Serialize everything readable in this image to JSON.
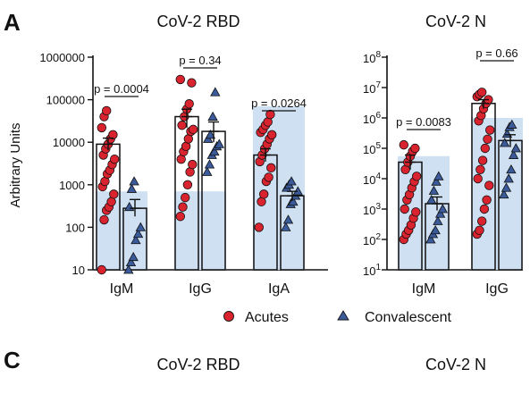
{
  "figure": {
    "panel_a_letter": "A",
    "panel_c_letter": "C",
    "panel_c_titles": [
      "CoV-2 RBD",
      "CoV-2 N"
    ]
  },
  "legend": {
    "items": [
      {
        "label": "Acutes",
        "marker": "circle",
        "color": "#d9232e"
      },
      {
        "label": "Convalescent",
        "marker": "triangle",
        "color": "#3a5a9a"
      }
    ]
  },
  "colors": {
    "acute_marker": "#d9232e",
    "convalescent_marker": "#3a5a9a",
    "shaded_band": "#cfe0f3",
    "bar_outline": "#111111"
  },
  "chart_data": [
    {
      "type": "bar",
      "title": "CoV-2 RBD",
      "ylabel": "Arbitrary Units",
      "yscale": "log",
      "ylim": [
        10,
        1000000
      ],
      "yticks": [
        {
          "value": 10,
          "label": "10"
        },
        {
          "value": 100,
          "label": "100"
        },
        {
          "value": 1000,
          "label": "1000"
        },
        {
          "value": 10000,
          "label": "10000"
        },
        {
          "value": 100000,
          "label": "100000"
        },
        {
          "value": 1000000,
          "label": "1000000"
        }
      ],
      "categories": [
        "IgM",
        "IgG",
        "IgA"
      ],
      "series": [
        {
          "name": "Acutes",
          "means": [
            9000,
            40000,
            5000
          ],
          "errors": [
            [
              6500,
              12500
            ],
            [
              22000,
              60000
            ],
            [
              3500,
              7000
            ]
          ]
        },
        {
          "name": "Convalescent",
          "means": [
            280,
            18000,
            550
          ],
          "errors": [
            [
              180,
              450
            ],
            [
              10000,
              30000
            ],
            [
              420,
              700
            ]
          ]
        }
      ],
      "shaded_regions": [
        {
          "category": "IgM",
          "top": 700
        },
        {
          "category": "IgG",
          "top": 700
        },
        {
          "category": "IgA",
          "top": 70000
        }
      ],
      "points": {
        "IgM": {
          "Acutes": [
            10,
            150,
            250,
            300,
            400,
            600,
            900,
            1200,
            1800,
            2200,
            3000,
            4000,
            5000,
            7000,
            9000,
            12000,
            15000,
            22000,
            40000,
            55000
          ],
          "Convalescent": [
            10,
            15,
            20,
            50,
            70,
            100,
            300,
            800,
            1200
          ]
        },
        "IgG": {
          "Acutes": [
            180,
            300,
            500,
            1000,
            2000,
            3000,
            4000,
            6000,
            8000,
            12000,
            18000,
            20000,
            25000,
            40000,
            60000,
            80000,
            250000,
            300000
          ],
          "Convalescent": [
            2000,
            3000,
            5000,
            6000,
            8000,
            9000,
            12000,
            15000,
            40000,
            150000
          ]
        },
        "IgA": {
          "Acutes": [
            100,
            400,
            600,
            1200,
            1500,
            2500,
            3500,
            5000,
            7000,
            9000,
            12000,
            15000,
            17000,
            20000,
            25000,
            30000,
            45000
          ],
          "Convalescent": [
            100,
            150,
            350,
            400,
            550,
            700,
            850,
            1000,
            1200
          ]
        }
      },
      "comparisons": [
        {
          "category": "IgM",
          "label": "p = 0.0004"
        },
        {
          "category": "IgG",
          "label": "p = 0.34"
        },
        {
          "category": "IgA",
          "label": "p = 0.0264"
        }
      ]
    },
    {
      "type": "bar",
      "title": "CoV-2 N",
      "yscale": "log",
      "ylim": [
        10,
        100000000
      ],
      "yticks": [
        {
          "value": 10,
          "base": "10",
          "exp": "1"
        },
        {
          "value": 100,
          "base": "10",
          "exp": "2"
        },
        {
          "value": 1000,
          "base": "10",
          "exp": "3"
        },
        {
          "value": 10000,
          "base": "10",
          "exp": "4"
        },
        {
          "value": 100000,
          "base": "10",
          "exp": "5"
        },
        {
          "value": 1000000,
          "base": "10",
          "exp": "6"
        },
        {
          "value": 10000000,
          "base": "10",
          "exp": "7"
        },
        {
          "value": 100000000,
          "base": "10",
          "exp": "8"
        }
      ],
      "categories": [
        "IgM",
        "IgG"
      ],
      "series": [
        {
          "name": "Acutes",
          "means": [
            35000,
            3000000
          ],
          "errors": [
            [
              20000,
              60000
            ],
            [
              2000000,
              4000000
            ]
          ]
        },
        {
          "name": "Convalescent",
          "means": [
            1500,
            180000
          ],
          "errors": [
            [
              900,
              2500
            ],
            [
              110000,
              280000
            ]
          ]
        }
      ],
      "shaded_regions": [
        {
          "category": "IgM",
          "top": 55000
        },
        {
          "category": "IgG",
          "top": 1000000
        }
      ],
      "points": {
        "IgM": {
          "Acutes": [
            100,
            150,
            200,
            300,
            500,
            800,
            1000,
            2000,
            3000,
            5000,
            8000,
            12000,
            20000,
            35000,
            55000,
            80000,
            100000,
            130000
          ],
          "Convalescent": [
            100,
            150,
            200,
            400,
            700,
            1000,
            2000,
            4000,
            8000,
            12000
          ]
        },
        "IgG": {
          "Acutes": [
            150,
            200,
            400,
            1000,
            2000,
            6000,
            10000,
            20000,
            40000,
            100000,
            200000,
            400000,
            800000,
            1200000,
            2000000,
            3000000,
            4000000,
            5000000,
            6000000,
            7000000
          ],
          "Convalescent": [
            3000,
            5000,
            10000,
            20000,
            60000,
            100000,
            150000,
            300000,
            500000,
            600000
          ]
        }
      },
      "comparisons": [
        {
          "category": "IgM",
          "label": "p = 0.0083"
        },
        {
          "category": "IgG",
          "label": "p = 0.66"
        }
      ]
    }
  ]
}
